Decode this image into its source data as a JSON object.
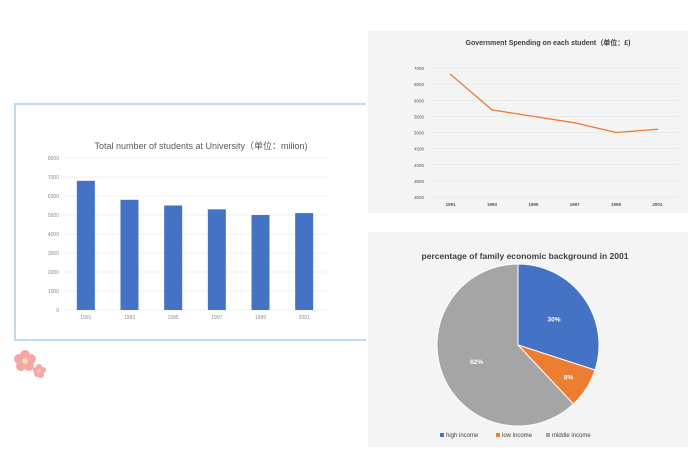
{
  "chart_data": [
    {
      "type": "bar",
      "title": "Total number of students at University（单位：milion)",
      "categories": [
        "1991",
        "1993",
        "1995",
        "1997",
        "1999",
        "2001"
      ],
      "values": [
        6800,
        5800,
        5500,
        5300,
        5000,
        5100
      ],
      "yticks": [
        "0",
        "1000",
        "2000",
        "3000",
        "4000",
        "5000",
        "6000",
        "7000",
        "8000"
      ],
      "ylim": [
        0,
        8000
      ],
      "color": "#4472c4",
      "grid": true
    },
    {
      "type": "line",
      "title": "Government Spending on each student（单位：£)",
      "categories": [
        "1991",
        "1993",
        "1995",
        "1997",
        "1999",
        "2001"
      ],
      "values": [
        6800,
        5700,
        5500,
        5300,
        5000,
        5100
      ],
      "yticks": [
        "3000",
        "3500",
        "4000",
        "4500",
        "5000",
        "5500",
        "6000",
        "6500",
        "7000"
      ],
      "ylim": [
        3000,
        7000
      ],
      "color": "#ed7d31",
      "grid": true
    },
    {
      "type": "pie",
      "title": "percentage of family economic background in 2001",
      "slices": [
        {
          "label": "high income",
          "value": 30,
          "text": "30%",
          "color": "#4472c4"
        },
        {
          "label": "low income",
          "value": 8,
          "text": "8%",
          "color": "#ed7d31"
        },
        {
          "label": "middle income",
          "value": 62,
          "text": "62%",
          "color": "#a5a5a5"
        }
      ],
      "legend_position": "bottom"
    }
  ]
}
